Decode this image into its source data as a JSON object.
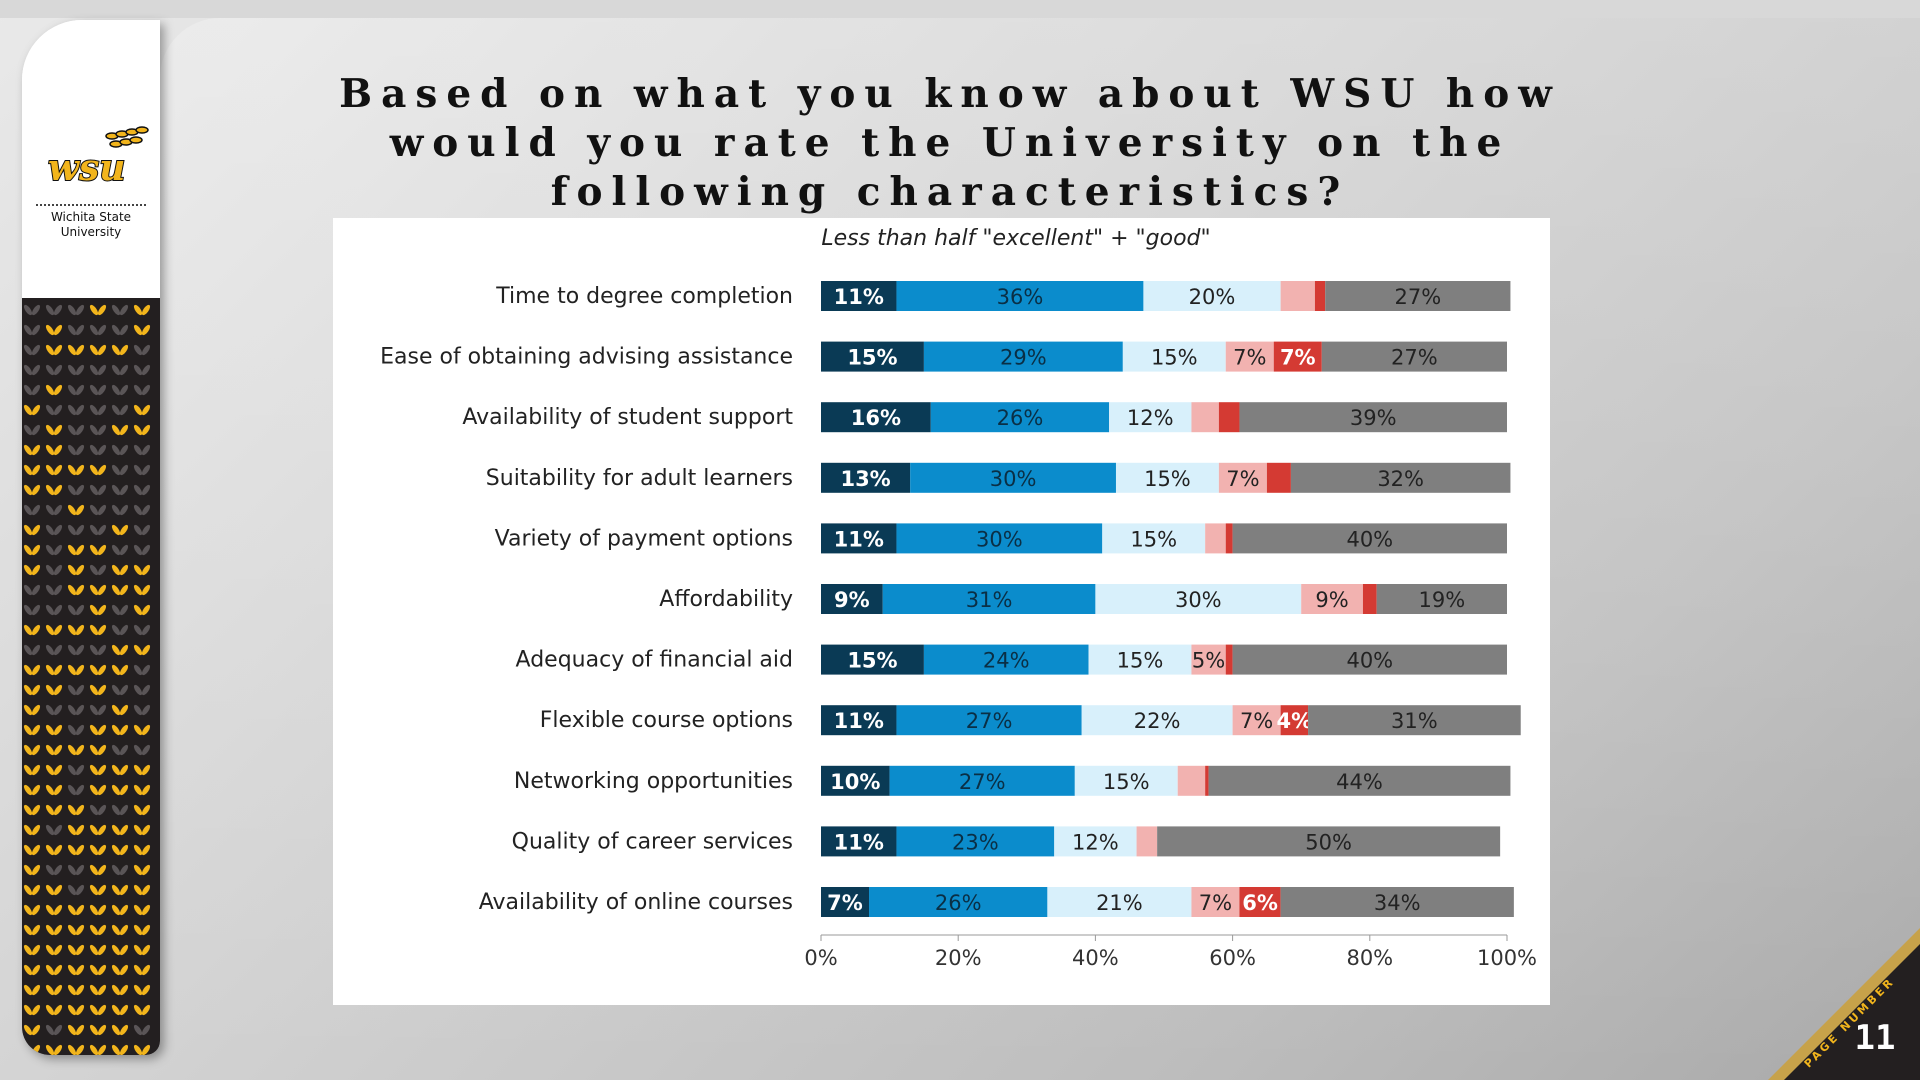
{
  "title": "Based on what you know about WSU how would you rate the University on the following characteristics?",
  "logo": {
    "mark": "wsu",
    "line1": "Wichita State",
    "line2": "University"
  },
  "page_number_label": "PAGE NUMBER",
  "page_number": "11",
  "colors": {
    "excellent": "#0a3a55",
    "good": "#0b8ccc",
    "fair": "#d8f0fb",
    "poor": "#f2b2b0",
    "very_poor": "#d43a33",
    "dont_know": "#7f7f7f",
    "gold": "#f2b51c",
    "sidebar_dark": "#231f20"
  },
  "chart_data": {
    "type": "bar",
    "orientation": "horizontal",
    "stacked": true,
    "subtitle": "Less than half \"excellent\" + \"good\"",
    "categories": [
      "Time to degree completion",
      "Ease of obtaining advising assistance",
      "Availability of student support",
      "Suitability for adult learners",
      "Variety of payment options",
      "Affordability",
      "Adequacy of financial aid",
      "Flexible course options",
      "Networking opportunities",
      "Quality of career services",
      "Availability of online courses"
    ],
    "series": [
      {
        "key": "excellent",
        "values": [
          11,
          15,
          16,
          13,
          11,
          9,
          15,
          11,
          10,
          11,
          7
        ],
        "labels": [
          "11%",
          "15%",
          "16%",
          "13%",
          "11%",
          "9%",
          "15%",
          "11%",
          "10%",
          "11%",
          "7%"
        ]
      },
      {
        "key": "good",
        "values": [
          36,
          29,
          26,
          30,
          30,
          31,
          24,
          27,
          27,
          23,
          26
        ],
        "labels": [
          "36%",
          "29%",
          "26%",
          "30%",
          "30%",
          "31%",
          "24%",
          "27%",
          "27%",
          "23%",
          "26%"
        ]
      },
      {
        "key": "fair",
        "values": [
          20,
          15,
          12,
          15,
          15,
          30,
          15,
          22,
          15,
          12,
          21
        ],
        "labels": [
          "20%",
          "15%",
          "12%",
          "15%",
          "15%",
          "30%",
          "15%",
          "22%",
          "15%",
          "12%",
          "21%"
        ]
      },
      {
        "key": "poor",
        "values": [
          5,
          7,
          4,
          7,
          3,
          9,
          5,
          7,
          4,
          3,
          7
        ],
        "labels": [
          "",
          "7%",
          "",
          "7%",
          "",
          "9%",
          "5%",
          "7%",
          "",
          "",
          "7%"
        ]
      },
      {
        "key": "very_poor",
        "values": [
          1.5,
          7,
          3,
          3.5,
          1,
          2,
          1,
          4,
          0.5,
          0,
          6
        ],
        "labels": [
          "",
          "7%",
          "",
          "",
          "",
          "",
          "",
          "4%",
          "",
          "",
          "6%"
        ]
      },
      {
        "key": "dont_know",
        "values": [
          27,
          27,
          39,
          32,
          40,
          19,
          40,
          31,
          44,
          50,
          34
        ],
        "labels": [
          "27%",
          "27%",
          "39%",
          "32%",
          "40%",
          "19%",
          "40%",
          "31%",
          "44%",
          "50%",
          "34%"
        ]
      }
    ],
    "xlim": [
      0,
      100
    ],
    "xticks": [
      "0%",
      "20%",
      "40%",
      "60%",
      "80%",
      "100%"
    ],
    "legend": "none",
    "grid": false
  }
}
